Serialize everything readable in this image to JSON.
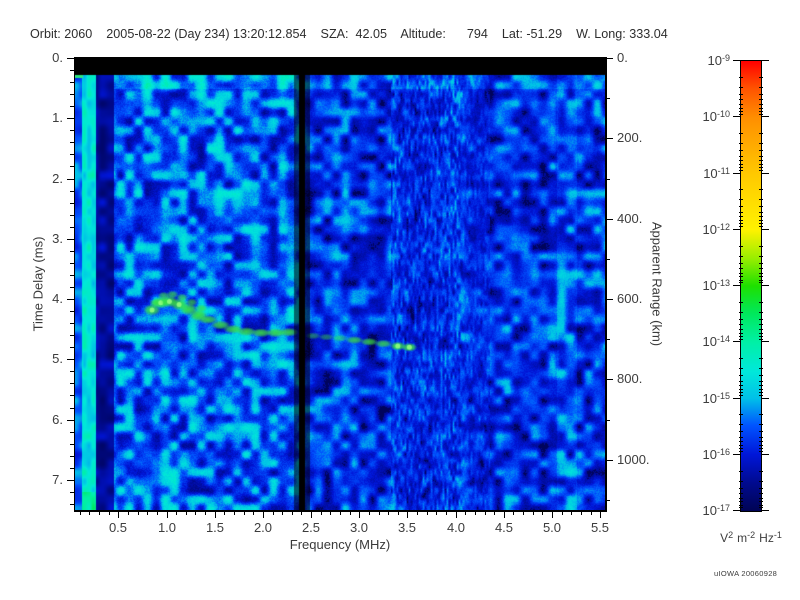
{
  "header": {
    "line": "Orbit: 2060    2005-08-22 (Day 234) 13:20:12.854    SZA:  42.05    Altitude:      794    Lat: -51.29    W. Long: 333.04",
    "orbit": "2060",
    "date": "2005-08-22",
    "day_of_year": "234",
    "time": "13:20:12.854",
    "sza": "42.05",
    "altitude": "794",
    "lat": "-51.29",
    "w_long": "333.04"
  },
  "watermark": "uIOWA 20060928",
  "chart_data": {
    "type": "heatmap",
    "subtype": "radar-sounder-ionogram-spectrogram",
    "title": "",
    "x_range": [
      0.05,
      5.55
    ],
    "y_range": [
      0.0,
      7.5
    ],
    "right_axis_km_per_ms": 150,
    "axes": {
      "bottom": {
        "label": "Frequency (MHz)",
        "major_ticks": [
          {
            "v": 0.5,
            "t": "0.5"
          },
          {
            "v": 1.0,
            "t": "1.0"
          },
          {
            "v": 1.5,
            "t": "1.5"
          },
          {
            "v": 2.0,
            "t": "2.0"
          },
          {
            "v": 2.5,
            "t": "2.5"
          },
          {
            "v": 3.0,
            "t": "3.0"
          },
          {
            "v": 3.5,
            "t": "3.5"
          },
          {
            "v": 4.0,
            "t": "4.0"
          },
          {
            "v": 4.5,
            "t": "4.5"
          },
          {
            "v": 5.0,
            "t": "5.0"
          },
          {
            "v": 5.5,
            "t": "5.5"
          }
        ],
        "minor_step": 0.1
      },
      "left": {
        "label": "Time Delay (ms)",
        "major_ticks": [
          {
            "v": 0,
            "t": "0."
          },
          {
            "v": 1,
            "t": "1."
          },
          {
            "v": 2,
            "t": "2."
          },
          {
            "v": 3,
            "t": "3."
          },
          {
            "v": 4,
            "t": "4."
          },
          {
            "v": 5,
            "t": "5."
          },
          {
            "v": 6,
            "t": "6."
          },
          {
            "v": 7,
            "t": "7."
          }
        ],
        "minor_step": 0.2
      },
      "right": {
        "label": "Apparent Range (km)",
        "major_ticks": [
          {
            "v": 0,
            "t": "0."
          },
          {
            "v": 200,
            "t": "200."
          },
          {
            "v": 400,
            "t": "400."
          },
          {
            "v": 600,
            "t": "600."
          },
          {
            "v": 800,
            "t": "800."
          },
          {
            "v": 1000,
            "t": "1000."
          }
        ],
        "minor_values": [
          100,
          300,
          500,
          700,
          900,
          1100
        ]
      }
    },
    "colorbar": {
      "scale": "log",
      "top_value": "1e-9",
      "bottom_value": "1e-17",
      "tick_exponents": [
        -9,
        -10,
        -11,
        -12,
        -13,
        -14,
        -15,
        -16,
        -17
      ],
      "unit_parts": [
        {
          "base": "V",
          "sup": "2"
        },
        {
          "base": "m",
          "sup": "-2"
        },
        {
          "base": "Hz",
          "sup": "-1"
        }
      ],
      "gradient": [
        {
          "p": 0,
          "c": "#ff0000"
        },
        {
          "p": 6,
          "c": "#ff5200"
        },
        {
          "p": 12.5,
          "c": "#ff8e00"
        },
        {
          "p": 25,
          "c": "#ffc800"
        },
        {
          "p": 37.5,
          "c": "#fff200"
        },
        {
          "p": 44,
          "c": "#96ee00"
        },
        {
          "p": 50,
          "c": "#1ee000"
        },
        {
          "p": 56,
          "c": "#00e85a"
        },
        {
          "p": 62.5,
          "c": "#00f0a6"
        },
        {
          "p": 69,
          "c": "#00e8da"
        },
        {
          "p": 75,
          "c": "#00c0e8"
        },
        {
          "p": 81,
          "c": "#0054ff"
        },
        {
          "p": 87.5,
          "c": "#0016d8"
        },
        {
          "p": 94,
          "c": "#000a8c"
        },
        {
          "p": 100,
          "c": "#000455"
        }
      ]
    },
    "features": {
      "top_blank_band_ms": [
        0.0,
        0.28
      ],
      "green_mark_top_left_ms": 0.3,
      "transmitter_gap_mhz": [
        2.37,
        2.43
      ],
      "low_freq_bright_column_mhz": [
        0.12,
        0.25
      ],
      "streaky_interference_mhz": [
        3.32,
        4.05
      ],
      "noise_regions": [
        {
          "f_mhz": [
            0.27,
            0.45
          ],
          "level": "very low, mostly black with faint blue"
        },
        {
          "f_mhz": [
            0.45,
            2.37
          ],
          "level": "moderate mottled blue-cyan noise ~1e-15 to 5e-14"
        },
        {
          "f_mhz": [
            2.43,
            5.55
          ],
          "level": "low dark-blue noise with black gaps ~1e-16"
        }
      ]
    },
    "echo_trace": {
      "name": "ionospheric echo",
      "color": "#3ce23c",
      "points_mhz_ms": [
        [
          0.85,
          4.18
        ],
        [
          0.94,
          4.06
        ],
        [
          1.03,
          4.04
        ],
        [
          1.13,
          4.09
        ],
        [
          1.23,
          4.17
        ],
        [
          1.33,
          4.27
        ],
        [
          1.43,
          4.34
        ],
        [
          1.56,
          4.43
        ],
        [
          1.69,
          4.5
        ],
        [
          1.83,
          4.54
        ],
        [
          1.98,
          4.56
        ],
        [
          2.13,
          4.56
        ],
        [
          2.27,
          4.55
        ],
        [
          2.52,
          4.61
        ],
        [
          2.66,
          4.63
        ],
        [
          2.8,
          4.65
        ],
        [
          2.95,
          4.68
        ],
        [
          3.1,
          4.71
        ],
        [
          3.25,
          4.74
        ],
        [
          3.4,
          4.78
        ],
        [
          3.52,
          4.8
        ]
      ]
    }
  }
}
